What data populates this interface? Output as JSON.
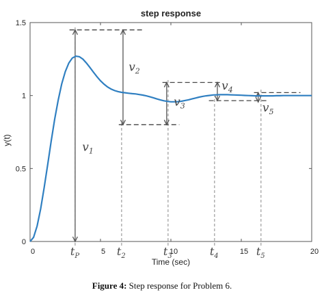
{
  "chart_data": {
    "type": "line",
    "title": "step response",
    "xlabel": "Time (sec)",
    "ylabel": "y(t)",
    "xlim": [
      0,
      20
    ],
    "ylim": [
      0,
      1.5
    ],
    "x_ticks": [
      "0",
      "5",
      "10",
      "15",
      "20"
    ],
    "y_ticks": [
      "0",
      "0.5",
      "1",
      "1.5"
    ],
    "grid": false,
    "line_color": "#2f7fc1",
    "series": [
      {
        "x": [
          0,
          0.25,
          0.5,
          0.75,
          1,
          1.25,
          1.5,
          1.75,
          2,
          2.25,
          2.5,
          2.75,
          3,
          3.25,
          3.5,
          3.75,
          4,
          4.25,
          4.5,
          4.75,
          5,
          5.25,
          5.5,
          5.75,
          6,
          6.25,
          6.5,
          6.75,
          7,
          7.25,
          7.5,
          7.75,
          8,
          8.25,
          8.5,
          8.75,
          9,
          9.25,
          9.5,
          9.75,
          10,
          10.25,
          10.5,
          10.75,
          11,
          11.25,
          11.5,
          11.75,
          12,
          12.25,
          12.5,
          12.75,
          13,
          13.25,
          13.5,
          13.75,
          14,
          14.25,
          14.5,
          14.75,
          15,
          15.25,
          15.5,
          15.75,
          16,
          16.25,
          16.5,
          16.75,
          17,
          17.25,
          17.5,
          17.75,
          18,
          18.25,
          18.5,
          18.75,
          19,
          19.25,
          19.5,
          19.75,
          20
        ],
        "y": [
          0,
          0.028,
          0.106,
          0.224,
          0.369,
          0.528,
          0.688,
          0.838,
          0.97,
          1.08,
          1.164,
          1.223,
          1.257,
          1.27,
          1.266,
          1.249,
          1.223,
          1.192,
          1.16,
          1.129,
          1.101,
          1.078,
          1.059,
          1.045,
          1.034,
          1.027,
          1.022,
          1.019,
          1.016,
          1.013,
          1.011,
          1.007,
          1.003,
          0.998,
          0.992,
          0.985,
          0.977,
          0.97,
          0.964,
          0.96,
          0.957,
          0.957,
          0.958,
          0.961,
          0.966,
          0.971,
          0.977,
          0.983,
          0.989,
          0.994,
          0.998,
          1.001,
          1.004,
          1.005,
          1.006,
          1.006,
          1.006,
          1.005,
          1.004,
          1.003,
          1.002,
          1.001,
          1.0,
          0.999,
          0.998,
          0.998,
          0.998,
          0.998,
          0.998,
          0.998,
          0.999,
          0.999,
          1.0,
          1.0,
          1.0,
          1.0,
          1.0,
          1.0,
          1.0,
          1.0,
          1.0
        ]
      }
    ]
  },
  "annotations": {
    "x_marks": [
      "t",
      "t",
      "t",
      "t",
      "t"
    ],
    "x_mark_subs": [
      "P",
      "2",
      "3",
      "4",
      "5"
    ],
    "v_labels": [
      "v",
      "v",
      "v",
      "v",
      "v"
    ],
    "v_subs": [
      "1",
      "2",
      "3",
      "4",
      "5"
    ],
    "t_values": [
      3.2,
      6.5,
      9.8,
      13.1,
      16.4
    ],
    "ref_values": [
      1.45,
      0.8,
      1.09,
      0.965,
      1.02
    ]
  },
  "caption": {
    "bold": "Figure 4:",
    "text": " Step response for Problem 6."
  }
}
